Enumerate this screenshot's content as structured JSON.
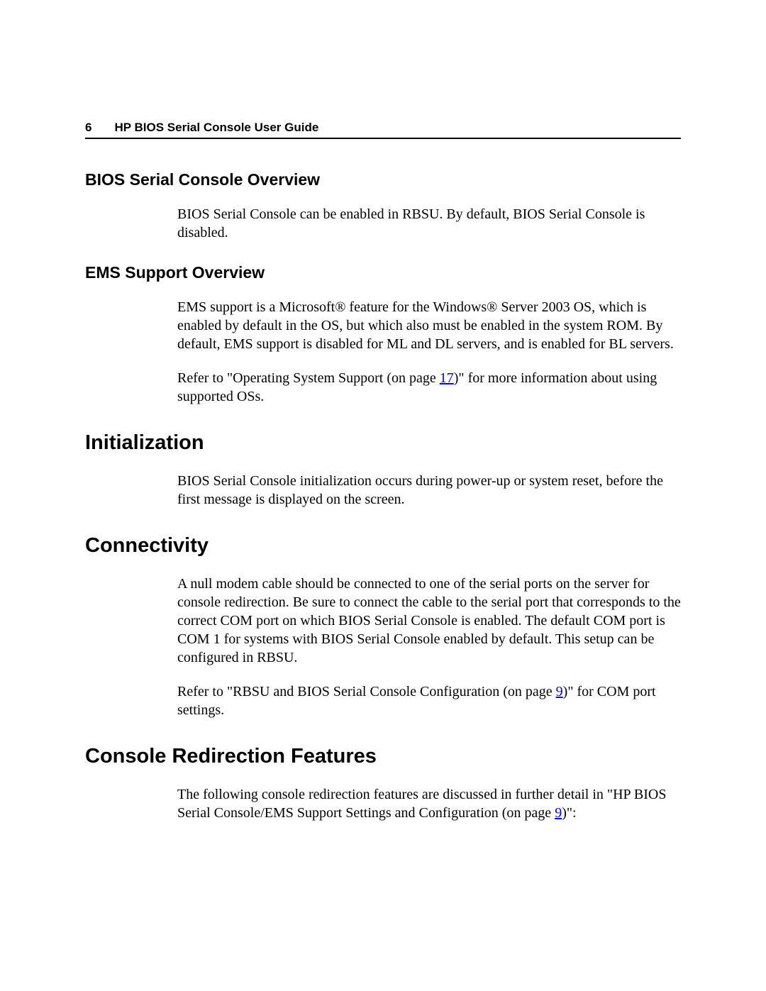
{
  "header": {
    "page_number": "6",
    "title": "HP BIOS Serial Console User Guide"
  },
  "sections": {
    "bios_overview": {
      "heading": "BIOS Serial Console Overview",
      "p1": "BIOS Serial Console can be enabled in RBSU. By default, BIOS Serial Console is disabled."
    },
    "ems_overview": {
      "heading": "EMS Support Overview",
      "p1": "EMS support is a Microsoft® feature for the Windows® Server 2003 OS, which is enabled by default in the OS, but which also must be enabled in the system ROM. By default, EMS support is disabled for ML and DL servers, and is enabled for BL servers.",
      "p2_pre": "Refer to \"Operating System Support (on page ",
      "p2_link": "17",
      "p2_post": ")\" for more information about using supported OSs."
    },
    "initialization": {
      "heading": "Initialization",
      "p1": "BIOS Serial Console initialization occurs during power-up or system reset, before the first message is displayed on the screen."
    },
    "connectivity": {
      "heading": "Connectivity",
      "p1": "A null modem cable should be connected to one of the serial ports on the server for console redirection. Be sure to connect the cable to the serial port that corresponds to the correct COM port on which BIOS Serial Console is enabled. The default COM port is COM 1 for systems with BIOS Serial Console enabled by default. This setup can be configured in RBSU.",
      "p2_pre": "Refer to \"RBSU and BIOS Serial Console Configuration (on page ",
      "p2_link": "9",
      "p2_post": ")\" for COM port settings."
    },
    "console_redirection": {
      "heading": "Console Redirection Features",
      "p1_pre": "The following console redirection features are discussed in further detail in \"HP BIOS Serial Console/EMS Support Settings and Configuration (on page ",
      "p1_link": "9",
      "p1_post": ")\":"
    }
  },
  "colors": {
    "text": "#000000",
    "background": "#ffffff",
    "link": "#0000ee"
  }
}
